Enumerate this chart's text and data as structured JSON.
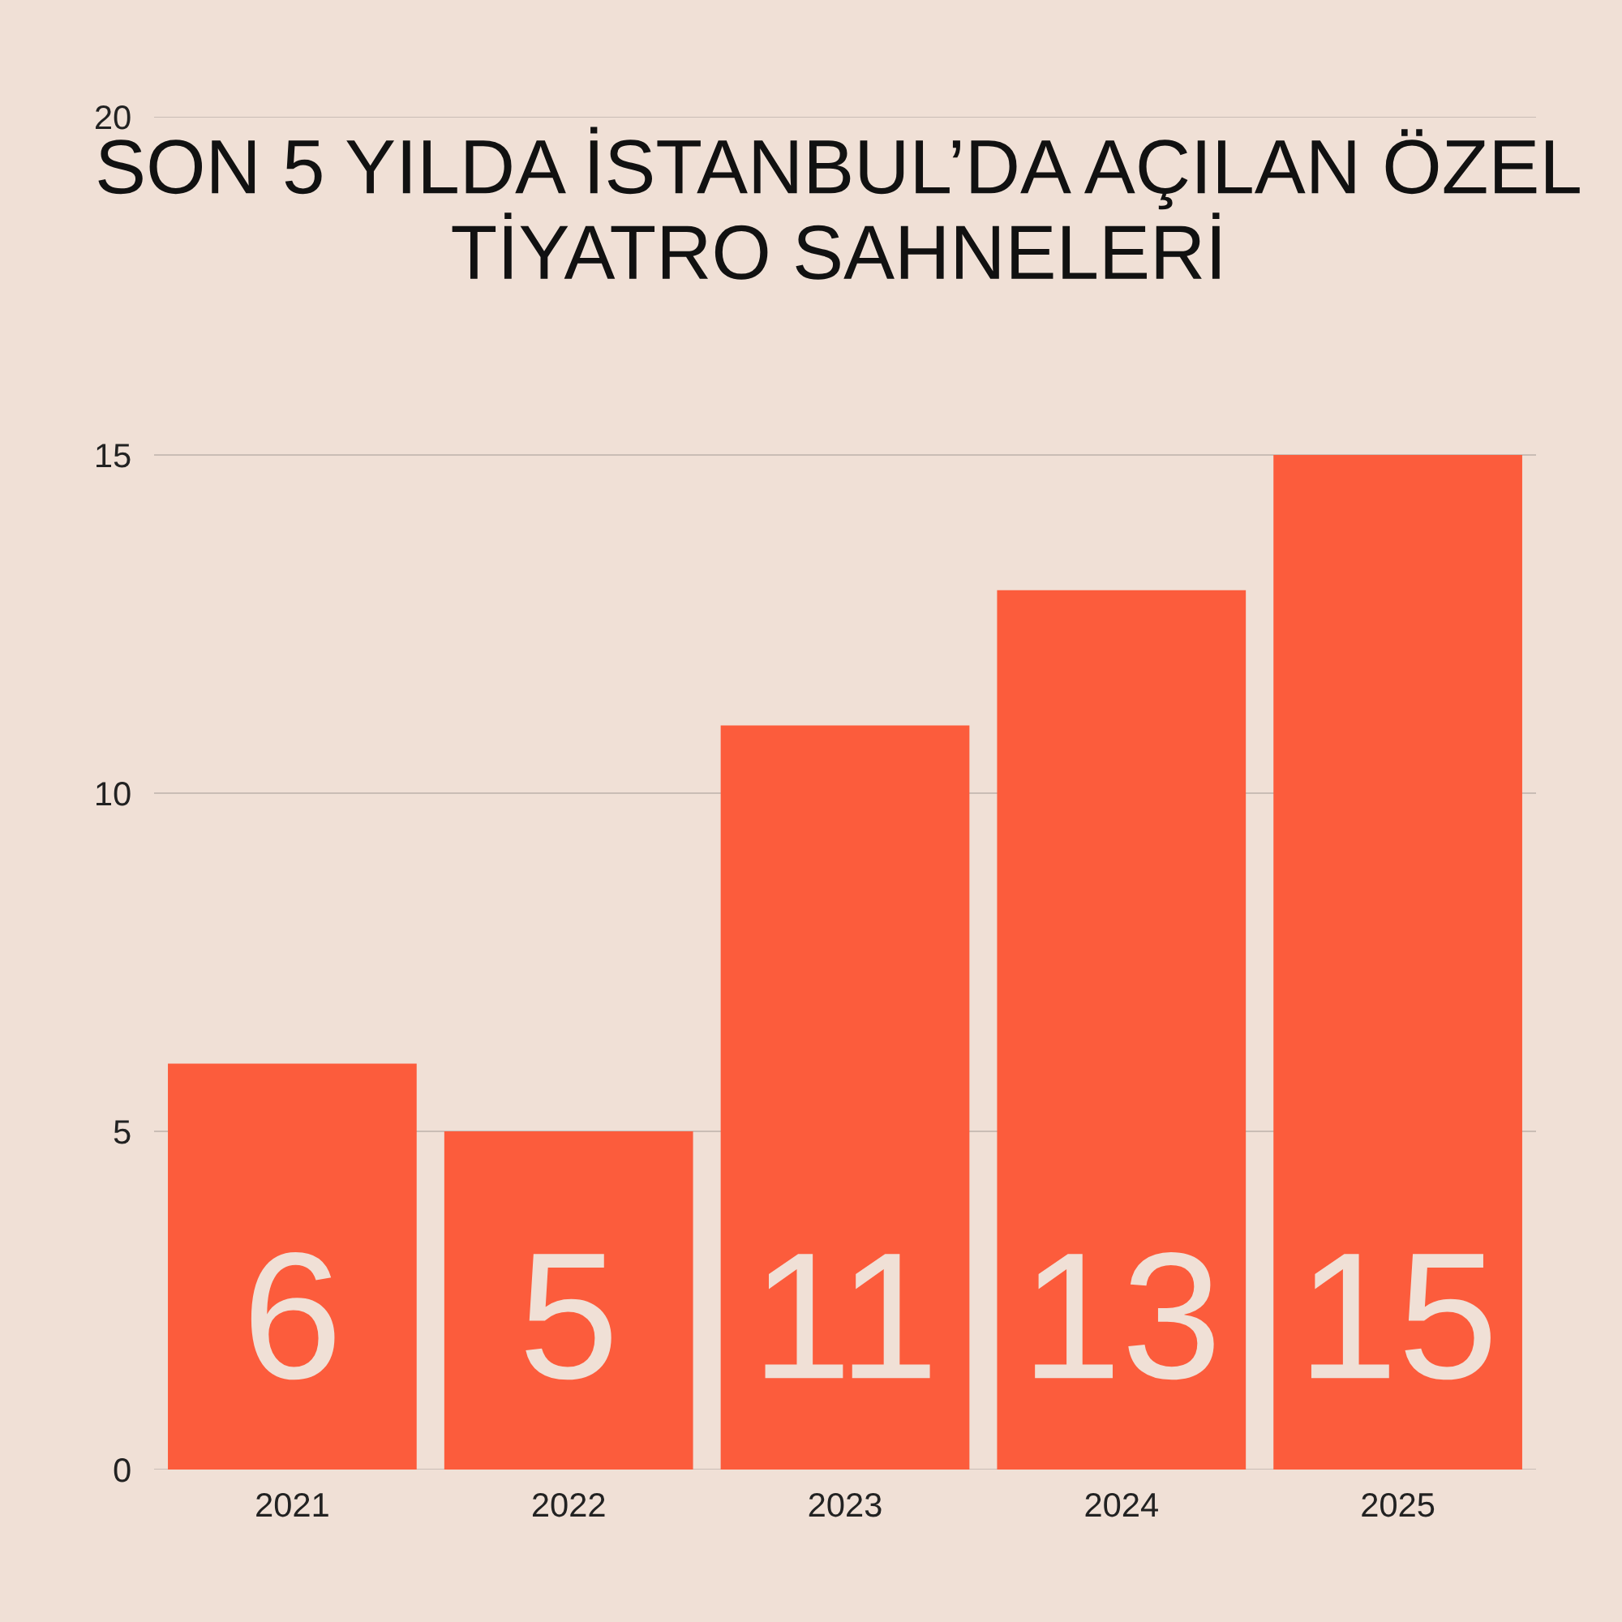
{
  "chart_data": {
    "type": "bar",
    "title": "SON 5 YILDA İSTANBUL’DA AÇILAN ÖZEL TİYATRO SAHNELERİ",
    "categories": [
      "2021",
      "2022",
      "2023",
      "2024",
      "2025"
    ],
    "values": [
      6,
      5,
      11,
      13,
      15
    ],
    "color": "#fc5c3c",
    "ylim": [
      0,
      20
    ],
    "yticks": [
      0,
      5,
      10,
      15,
      20
    ],
    "grid": "y",
    "data_labels": true
  }
}
